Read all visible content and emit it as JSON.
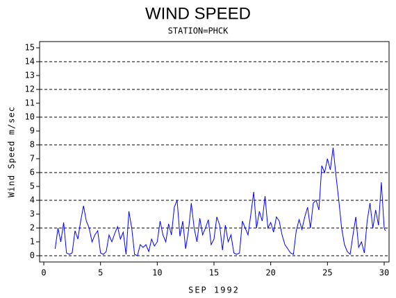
{
  "chart_data": {
    "type": "line",
    "title": "WIND SPEED",
    "subtitle": "STATION=PHCK",
    "ylabel": "Wind Speed m/sec",
    "xlabel": "SEP 1992",
    "xlim": [
      -0.37,
      30.43
    ],
    "xticks": [
      0,
      5,
      10,
      15,
      20,
      25,
      30
    ],
    "ylim": [
      -0.45,
      15.45
    ],
    "yticks": [
      0,
      1,
      2,
      3,
      4,
      5,
      6,
      7,
      8,
      9,
      10,
      11,
      12,
      13,
      14,
      15
    ],
    "ygrid": [
      0,
      2,
      4,
      6,
      8,
      10,
      12,
      14
    ],
    "series": [
      {
        "color": "#0000ff",
        "x": [
          1.0,
          1.25,
          1.5,
          1.75,
          2.0,
          2.25,
          2.5,
          2.75,
          3.0,
          3.25,
          3.5,
          3.75,
          4.0,
          4.25,
          4.5,
          4.75,
          5.0,
          5.25,
          5.5,
          5.75,
          6.0,
          6.25,
          6.5,
          6.75,
          7.0,
          7.25,
          7.5,
          7.75,
          8.0,
          8.25,
          8.5,
          8.75,
          9.0,
          9.25,
          9.5,
          9.75,
          10.0,
          10.25,
          10.5,
          10.75,
          11.0,
          11.25,
          11.5,
          11.75,
          12.0,
          12.25,
          12.5,
          12.75,
          13.0,
          13.25,
          13.5,
          13.75,
          14.0,
          14.25,
          14.5,
          14.75,
          15.0,
          15.25,
          15.5,
          15.75,
          16.0,
          16.25,
          16.5,
          16.75,
          17.0,
          17.25,
          17.5,
          17.75,
          18.0,
          18.25,
          18.5,
          18.75,
          19.0,
          19.25,
          19.5,
          19.75,
          20.0,
          20.25,
          20.5,
          20.75,
          21.0,
          21.25,
          21.5,
          21.75,
          22.0,
          22.25,
          22.5,
          22.75,
          23.0,
          23.25,
          23.5,
          23.75,
          24.0,
          24.25,
          24.5,
          24.75,
          25.0,
          25.25,
          25.5,
          25.75,
          26.0,
          26.25,
          26.5,
          26.75,
          27.0,
          27.25,
          27.5,
          27.75,
          28.0,
          28.25,
          28.5,
          28.75,
          29.0,
          29.25,
          29.5,
          29.75,
          30.0,
          30.1
        ],
        "values": [
          0.5,
          2.0,
          1.0,
          2.4,
          0.2,
          0.1,
          0.2,
          1.8,
          1.2,
          2.5,
          3.6,
          2.5,
          2.0,
          1.0,
          1.5,
          1.8,
          0.2,
          0.1,
          0.3,
          1.5,
          1.0,
          1.6,
          2.1,
          1.2,
          1.7,
          0.1,
          3.2,
          2.0,
          0.1,
          0.0,
          0.8,
          0.6,
          0.8,
          0.3,
          1.2,
          0.7,
          1.0,
          2.5,
          1.5,
          1.0,
          2.3,
          1.5,
          3.5,
          4.0,
          1.4,
          2.5,
          0.5,
          1.8,
          3.8,
          2.0,
          1.0,
          2.7,
          1.5,
          2.0,
          2.6,
          0.8,
          1.2,
          2.8,
          2.2,
          0.4,
          2.2,
          1.0,
          1.5,
          0.2,
          0.1,
          0.2,
          2.5,
          2.0,
          1.5,
          3.0,
          4.6,
          2.0,
          3.2,
          2.5,
          4.3,
          2.0,
          2.4,
          1.7,
          2.8,
          2.5,
          1.5,
          0.8,
          0.5,
          0.2,
          0.1,
          1.8,
          2.6,
          1.9,
          2.8,
          3.5,
          2.0,
          3.8,
          4.0,
          3.3,
          6.5,
          6.0,
          7.0,
          6.2,
          7.8,
          5.8,
          4.0,
          2.0,
          0.8,
          0.3,
          0.1,
          1.5,
          2.8,
          0.6,
          1.0,
          0.2,
          2.5,
          3.8,
          2.0,
          3.3,
          2.2,
          5.3,
          2.0,
          1.8
        ]
      }
    ]
  }
}
